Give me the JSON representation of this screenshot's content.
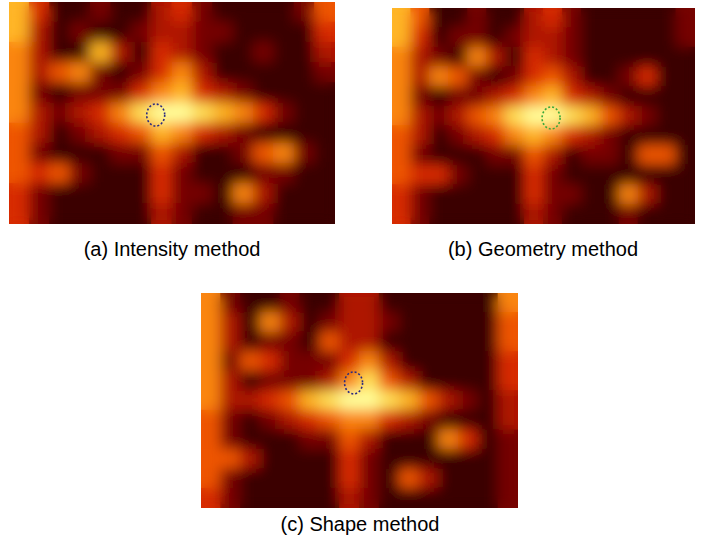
{
  "chart_data": [
    {
      "type": "heatmap",
      "title": "(a) Intensity method",
      "tick_labels": false,
      "color_range": [
        0,
        9
      ],
      "detection": {
        "col": 7.2,
        "row": 5.6,
        "color": "#2a2a80"
      },
      "cells": [
        [
          7,
          4,
          1,
          1,
          2,
          1,
          1,
          3,
          4,
          2,
          1,
          1,
          1,
          1,
          2,
          5
        ],
        [
          7,
          3,
          1,
          2,
          1,
          1,
          2,
          3,
          3,
          2,
          2,
          1,
          1,
          1,
          1,
          4
        ],
        [
          6,
          3,
          1,
          1,
          7,
          3,
          1,
          4,
          3,
          2,
          1,
          1,
          2,
          1,
          1,
          3
        ],
        [
          6,
          3,
          5,
          6,
          2,
          1,
          2,
          4,
          6,
          3,
          1,
          1,
          1,
          1,
          1,
          2
        ],
        [
          6,
          2,
          1,
          2,
          2,
          2,
          4,
          6,
          7,
          4,
          3,
          2,
          1,
          1,
          1,
          1
        ],
        [
          6,
          3,
          2,
          3,
          4,
          6,
          8,
          9,
          9,
          8,
          7,
          6,
          4,
          2,
          1,
          1
        ],
        [
          5,
          3,
          1,
          2,
          3,
          4,
          5,
          7,
          6,
          4,
          3,
          2,
          1,
          1,
          1,
          1
        ],
        [
          5,
          2,
          1,
          1,
          1,
          2,
          2,
          5,
          3,
          1,
          1,
          2,
          5,
          6,
          2,
          1
        ],
        [
          5,
          4,
          5,
          2,
          1,
          1,
          1,
          4,
          2,
          1,
          1,
          1,
          2,
          2,
          1,
          1
        ],
        [
          4,
          2,
          1,
          1,
          1,
          1,
          1,
          4,
          2,
          2,
          1,
          6,
          3,
          1,
          1,
          1
        ],
        [
          4,
          2,
          1,
          1,
          1,
          1,
          1,
          3,
          2,
          1,
          1,
          2,
          2,
          1,
          1,
          1
        ]
      ]
    },
    {
      "type": "heatmap",
      "title": "(b) Geometry method",
      "tick_labels": false,
      "color_range": [
        0,
        9
      ],
      "detection": {
        "col": 8.4,
        "row": 5.6,
        "color": "#3aa83a"
      },
      "cells": [
        [
          7,
          5,
          1,
          1,
          2,
          1,
          1,
          3,
          4,
          2,
          1,
          1,
          1,
          1,
          1,
          2
        ],
        [
          7,
          4,
          1,
          2,
          2,
          1,
          2,
          3,
          3,
          2,
          1,
          1,
          1,
          1,
          1,
          2
        ],
        [
          6,
          3,
          2,
          1,
          6,
          3,
          1,
          4,
          3,
          2,
          1,
          1,
          1,
          1,
          1,
          1
        ],
        [
          6,
          3,
          6,
          5,
          2,
          1,
          2,
          4,
          5,
          3,
          1,
          1,
          2,
          4,
          1,
          1
        ],
        [
          6,
          2,
          1,
          2,
          2,
          3,
          4,
          6,
          7,
          4,
          3,
          2,
          1,
          1,
          1,
          1
        ],
        [
          6,
          3,
          2,
          3,
          5,
          6,
          8,
          9,
          9,
          8,
          7,
          5,
          3,
          2,
          1,
          1
        ],
        [
          5,
          3,
          1,
          2,
          3,
          4,
          6,
          7,
          6,
          4,
          3,
          2,
          1,
          1,
          1,
          1
        ],
        [
          5,
          2,
          1,
          1,
          1,
          2,
          2,
          5,
          3,
          1,
          2,
          2,
          1,
          5,
          5,
          1
        ],
        [
          5,
          4,
          4,
          2,
          1,
          1,
          1,
          4,
          2,
          1,
          1,
          1,
          1,
          1,
          1,
          1
        ],
        [
          4,
          2,
          1,
          1,
          1,
          1,
          1,
          4,
          2,
          2,
          1,
          1,
          6,
          3,
          1,
          1
        ],
        [
          4,
          2,
          1,
          1,
          1,
          1,
          1,
          3,
          2,
          1,
          1,
          1,
          2,
          1,
          1,
          1
        ]
      ]
    },
    {
      "type": "heatmap",
      "title": "(c) Shape method",
      "tick_labels": false,
      "color_range": [
        0,
        9
      ],
      "detection": {
        "col": 7.7,
        "row": 4.6,
        "color": "#2a2a80"
      },
      "cells": [
        [
          6,
          2,
          1,
          1,
          2,
          1,
          1,
          3,
          3,
          1,
          1,
          1,
          1,
          1,
          1,
          6
        ],
        [
          6,
          3,
          1,
          6,
          3,
          1,
          2,
          3,
          3,
          2,
          1,
          1,
          1,
          1,
          1,
          5
        ],
        [
          6,
          3,
          1,
          2,
          2,
          1,
          5,
          3,
          3,
          1,
          1,
          1,
          1,
          1,
          1,
          5
        ],
        [
          6,
          2,
          5,
          4,
          2,
          2,
          2,
          4,
          6,
          3,
          1,
          1,
          1,
          1,
          1,
          4
        ],
        [
          6,
          3,
          1,
          2,
          2,
          2,
          3,
          6,
          8,
          5,
          3,
          1,
          1,
          1,
          1,
          4
        ],
        [
          6,
          3,
          3,
          4,
          5,
          7,
          8,
          9,
          9,
          8,
          7,
          5,
          3,
          2,
          1,
          3
        ],
        [
          5,
          2,
          1,
          2,
          3,
          4,
          5,
          6,
          6,
          4,
          3,
          2,
          1,
          1,
          1,
          3
        ],
        [
          5,
          2,
          1,
          1,
          1,
          2,
          2,
          5,
          3,
          1,
          1,
          1,
          6,
          4,
          1,
          2
        ],
        [
          5,
          5,
          3,
          1,
          1,
          1,
          1,
          4,
          2,
          1,
          1,
          1,
          1,
          1,
          1,
          2
        ],
        [
          5,
          2,
          1,
          1,
          1,
          1,
          1,
          4,
          2,
          1,
          5,
          3,
          1,
          1,
          1,
          2
        ],
        [
          4,
          2,
          1,
          1,
          1,
          1,
          1,
          3,
          2,
          1,
          1,
          1,
          1,
          1,
          1,
          2
        ]
      ]
    }
  ]
}
